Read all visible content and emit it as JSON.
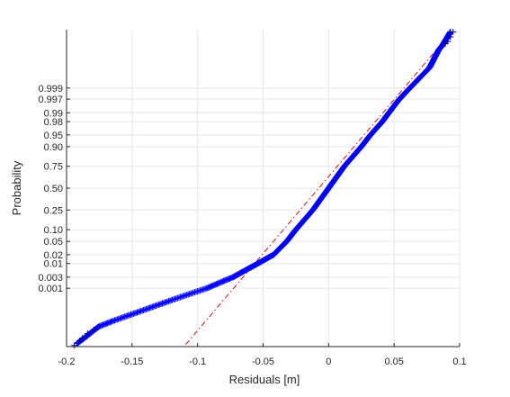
{
  "chart_data": {
    "type": "scatter",
    "title": "",
    "xlabel": "Residuals [m]",
    "ylabel": "Probability",
    "xlim": [
      -0.2,
      0.1
    ],
    "ylim_probability": [
      5e-07,
      0.9999995
    ],
    "x_scale": "linear",
    "y_scale": "normal-probability",
    "grid": true,
    "legend": "none",
    "x_ticks": [
      {
        "value": -0.2,
        "label": "-0.2"
      },
      {
        "value": -0.15,
        "label": "-0.15"
      },
      {
        "value": -0.1,
        "label": "-0.1"
      },
      {
        "value": -0.05,
        "label": "-0.05"
      },
      {
        "value": 0,
        "label": "0"
      },
      {
        "value": 0.05,
        "label": "0.05"
      },
      {
        "value": 0.1,
        "label": "0.1"
      }
    ],
    "y_ticks": [
      {
        "value": 0.001,
        "label": "0.001"
      },
      {
        "value": 0.003,
        "label": "0.003"
      },
      {
        "value": 0.01,
        "label": "0.01"
      },
      {
        "value": 0.02,
        "label": "0.02"
      },
      {
        "value": 0.05,
        "label": "0.05"
      },
      {
        "value": 0.1,
        "label": "0.10"
      },
      {
        "value": 0.25,
        "label": "0.25"
      },
      {
        "value": 0.5,
        "label": "0.50"
      },
      {
        "value": 0.75,
        "label": "0.75"
      },
      {
        "value": 0.9,
        "label": "0.90"
      },
      {
        "value": 0.95,
        "label": "0.95"
      },
      {
        "value": 0.98,
        "label": "0.98"
      },
      {
        "value": 0.99,
        "label": "0.99"
      },
      {
        "value": 0.997,
        "label": "0.997"
      },
      {
        "value": 0.999,
        "label": "0.999"
      }
    ],
    "series": [
      {
        "marker": "+",
        "color": "#0000ff",
        "curve": [
          {
            "p": 8e-07,
            "x": -0.192
          },
          {
            "p": 2e-06,
            "x": -0.186
          },
          {
            "p": 5e-06,
            "x": -0.18
          },
          {
            "p": 1e-05,
            "x": -0.175
          },
          {
            "p": 2e-05,
            "x": -0.165
          },
          {
            "p": 5e-05,
            "x": -0.15
          },
          {
            "p": 0.0001,
            "x": -0.138
          },
          {
            "p": 0.0003,
            "x": -0.118
          },
          {
            "p": 0.001,
            "x": -0.093
          },
          {
            "p": 0.003,
            "x": -0.073
          },
          {
            "p": 0.01,
            "x": -0.054
          },
          {
            "p": 0.02,
            "x": -0.042
          },
          {
            "p": 0.05,
            "x": -0.032
          },
          {
            "p": 0.1,
            "x": -0.025
          },
          {
            "p": 0.25,
            "x": -0.012
          },
          {
            "p": 0.5,
            "x": 0.0
          },
          {
            "p": 0.75,
            "x": 0.012
          },
          {
            "p": 0.9,
            "x": 0.025
          },
          {
            "p": 0.95,
            "x": 0.032
          },
          {
            "p": 0.98,
            "x": 0.041
          },
          {
            "p": 0.99,
            "x": 0.046
          },
          {
            "p": 0.997,
            "x": 0.054
          },
          {
            "p": 0.999,
            "x": 0.062
          },
          {
            "p": 0.9999,
            "x": 0.077
          },
          {
            "p": 0.99999,
            "x": 0.084
          },
          {
            "p": 0.999995,
            "x": 0.087
          },
          {
            "p": 0.9999993,
            "x": 0.093
          }
        ],
        "tail_markers": [
          {
            "p": 6e-07,
            "x": -0.194
          },
          {
            "p": 1.2e-06,
            "x": -0.19
          },
          {
            "p": 1.8e-06,
            "x": -0.188
          },
          {
            "p": 3.5e-06,
            "x": -0.184
          },
          {
            "p": 6e-06,
            "x": -0.179
          },
          {
            "p": 0.999996,
            "x": 0.089
          },
          {
            "p": 0.999997,
            "x": 0.091
          },
          {
            "p": 0.9999985,
            "x": 0.093
          },
          {
            "p": 0.9999993,
            "x": 0.095
          }
        ]
      }
    ],
    "reference_line": {
      "style": "dash-dot",
      "color": "#ff0000",
      "points": [
        {
          "p": 7e-07,
          "x": -0.109
        },
        {
          "p": 0.9999993,
          "x": 0.094
        }
      ]
    }
  }
}
